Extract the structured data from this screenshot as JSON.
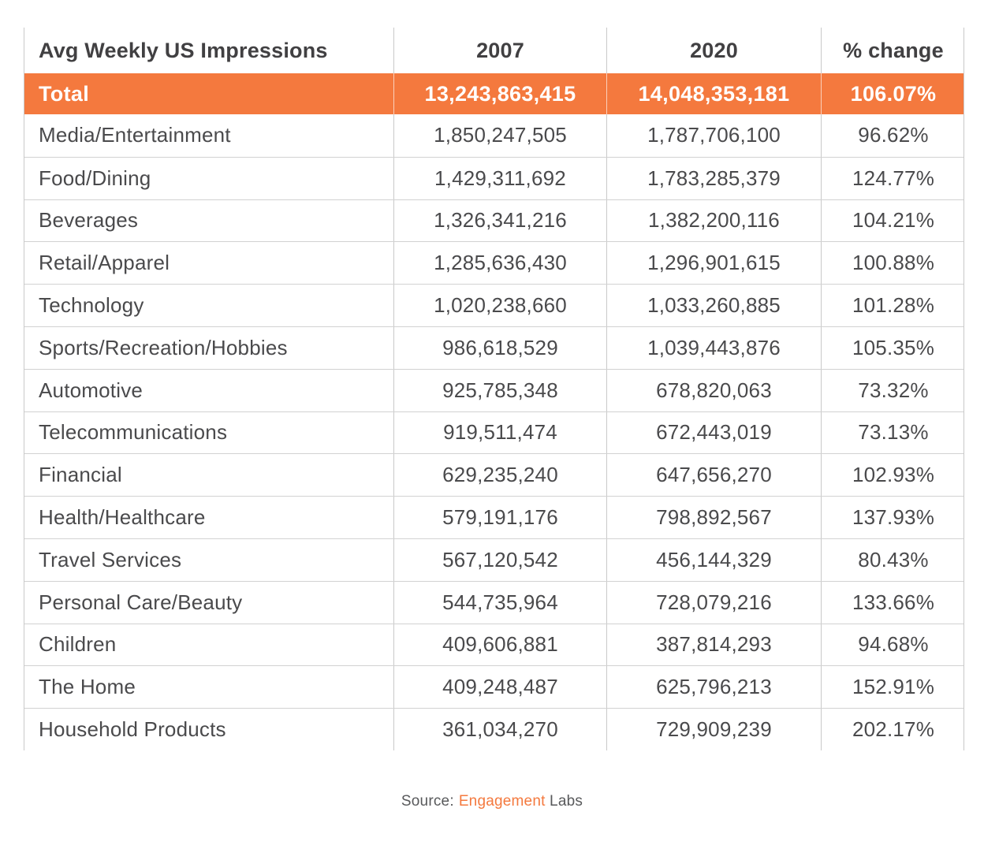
{
  "table": {
    "header": {
      "title": "Avg Weekly US Impressions",
      "col_2007": "2007",
      "col_2020": "2020",
      "col_change": "% change"
    },
    "total": {
      "label": "Total",
      "v2007": "13,243,863,415",
      "v2020": "14,048,353,181",
      "change": "106.07%"
    },
    "rows": [
      {
        "label": "Media/Entertainment",
        "v2007": "1,850,247,505",
        "v2020": "1,787,706,100",
        "change": "96.62%"
      },
      {
        "label": "Food/Dining",
        "v2007": "1,429,311,692",
        "v2020": "1,783,285,379",
        "change": "124.77%"
      },
      {
        "label": "Beverages",
        "v2007": "1,326,341,216",
        "v2020": "1,382,200,116",
        "change": "104.21%"
      },
      {
        "label": "Retail/Apparel",
        "v2007": "1,285,636,430",
        "v2020": "1,296,901,615",
        "change": "100.88%"
      },
      {
        "label": "Technology",
        "v2007": "1,020,238,660",
        "v2020": "1,033,260,885",
        "change": "101.28%"
      },
      {
        "label": "Sports/Recreation/Hobbies",
        "v2007": "986,618,529",
        "v2020": "1,039,443,876",
        "change": "105.35%"
      },
      {
        "label": "Automotive",
        "v2007": "925,785,348",
        "v2020": "678,820,063",
        "change": "73.32%"
      },
      {
        "label": "Telecommunications",
        "v2007": "919,511,474",
        "v2020": "672,443,019",
        "change": "73.13%"
      },
      {
        "label": "Financial",
        "v2007": "629,235,240",
        "v2020": "647,656,270",
        "change": "102.93%"
      },
      {
        "label": "Health/Healthcare",
        "v2007": "579,191,176",
        "v2020": "798,892,567",
        "change": "137.93%"
      },
      {
        "label": "Travel Services",
        "v2007": "567,120,542",
        "v2020": "456,144,329",
        "change": "80.43%"
      },
      {
        "label": "Personal Care/Beauty",
        "v2007": "544,735,964",
        "v2020": "728,079,216",
        "change": "133.66%"
      },
      {
        "label": "Children",
        "v2007": "409,606,881",
        "v2020": "387,814,293",
        "change": "94.68%"
      },
      {
        "label": "The Home",
        "v2007": "409,248,487",
        "v2020": "625,796,213",
        "change": "152.91%"
      },
      {
        "label": "Household Products",
        "v2007": "361,034,270",
        "v2020": "729,909,239",
        "change": "202.17%"
      }
    ]
  },
  "source": {
    "prefix": "Source:",
    "brand": "Engagement",
    "suffix": "Labs"
  },
  "colors": {
    "accent_orange": "#F4793E",
    "text_dark": "#414042",
    "row_text": "#4A4A4C",
    "divider": "#C9C9C9",
    "source_gray": "#58595B"
  },
  "chart_data": {
    "type": "table",
    "title": "Avg Weekly US Impressions",
    "columns": [
      "Avg Weekly US Impressions",
      "2007",
      "2020",
      "% change"
    ],
    "rows": [
      [
        "Total",
        13243863415,
        14048353181,
        "106.07%"
      ],
      [
        "Media/Entertainment",
        1850247505,
        1787706100,
        "96.62%"
      ],
      [
        "Food/Dining",
        1429311692,
        1783285379,
        "124.77%"
      ],
      [
        "Beverages",
        1326341216,
        1382200116,
        "104.21%"
      ],
      [
        "Retail/Apparel",
        1285636430,
        1296901615,
        "100.88%"
      ],
      [
        "Technology",
        1020238660,
        1033260885,
        "101.28%"
      ],
      [
        "Sports/Recreation/Hobbies",
        986618529,
        1039443876,
        "105.35%"
      ],
      [
        "Automotive",
        925785348,
        678820063,
        "73.32%"
      ],
      [
        "Telecommunications",
        919511474,
        672443019,
        "73.13%"
      ],
      [
        "Financial",
        629235240,
        647656270,
        "102.93%"
      ],
      [
        "Health/Healthcare",
        579191176,
        798892567,
        "137.93%"
      ],
      [
        "Travel Services",
        567120542,
        456144329,
        "80.43%"
      ],
      [
        "Personal Care/Beauty",
        544735964,
        728079216,
        "133.66%"
      ],
      [
        "Children",
        409606881,
        387814293,
        "94.68%"
      ],
      [
        "The Home",
        409248487,
        625796213,
        "152.91%"
      ],
      [
        "Household Products",
        361034270,
        729909239,
        "202.17%"
      ]
    ],
    "highlight_row": "Total",
    "highlight_color": "#F4793E",
    "source": "Source: Engagement Labs"
  }
}
